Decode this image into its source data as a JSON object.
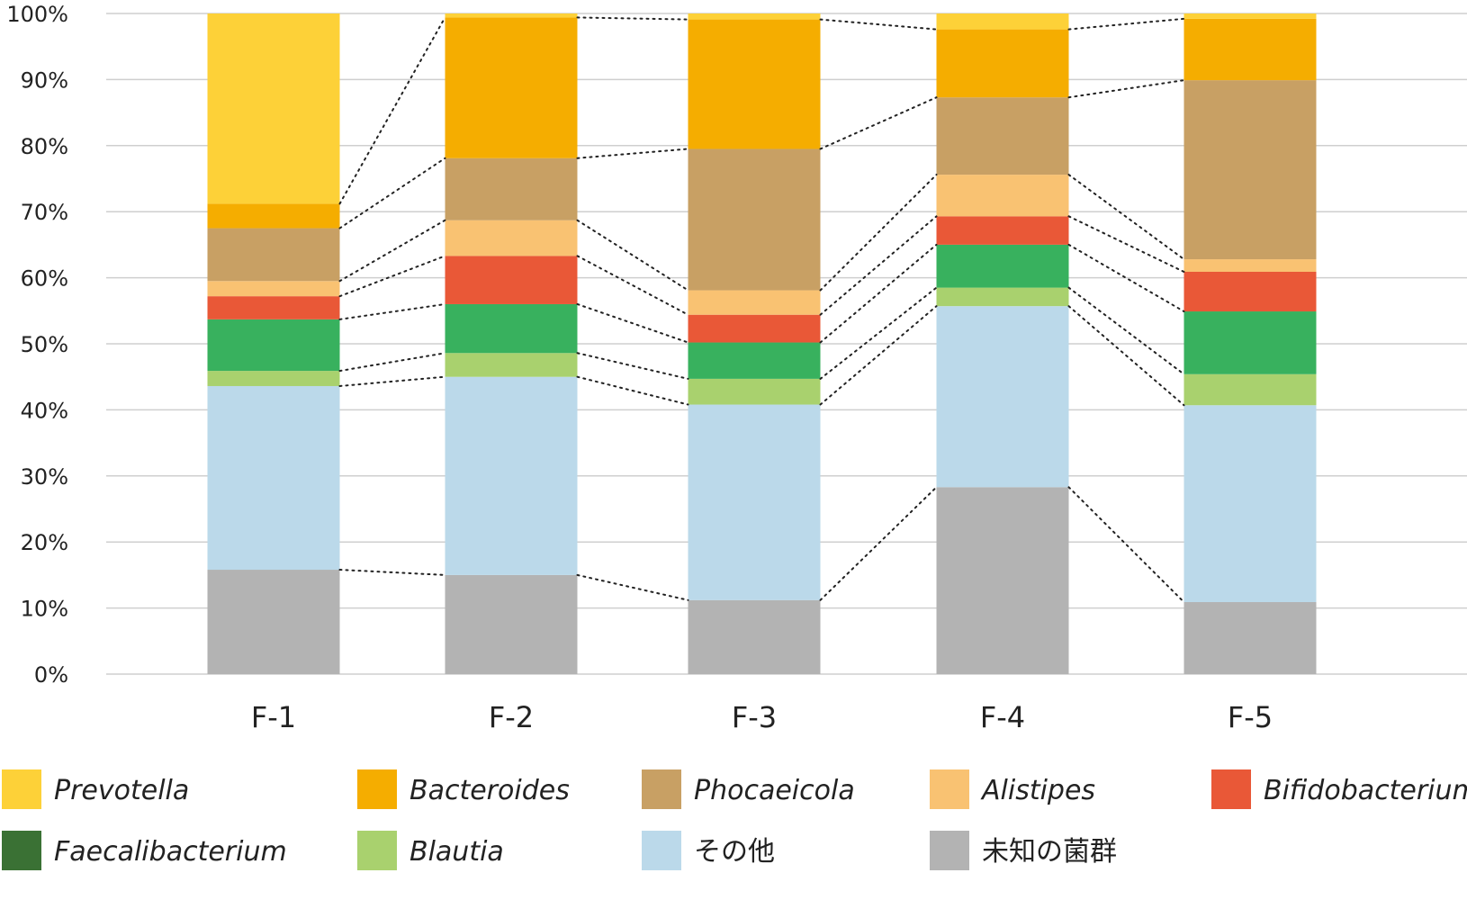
{
  "chart_data": {
    "type": "bar",
    "stacked": true,
    "normalized": true,
    "title": "",
    "xlabel": "",
    "ylabel": "",
    "ylim": [
      0,
      100
    ],
    "yticks": [
      "0%",
      "10%",
      "20%",
      "30%",
      "40%",
      "50%",
      "60%",
      "70%",
      "80%",
      "90%",
      "100%"
    ],
    "grid": true,
    "legend_position": "bottom",
    "connector_lines": "dotted",
    "categories": [
      "F-1",
      "F-2",
      "F-3",
      "F-4",
      "F-5"
    ],
    "series": [
      {
        "name": "未知の菌群",
        "color": "#b3b3b3",
        "values": [
          15.8,
          15.0,
          11.2,
          28.3,
          10.9
        ]
      },
      {
        "name": "その他",
        "color": "#bbd9ea",
        "values": [
          27.8,
          30.0,
          29.6,
          27.4,
          29.8
        ]
      },
      {
        "name": "Blautia",
        "color": "#a9d16e",
        "values": [
          2.3,
          3.6,
          3.9,
          2.8,
          4.7
        ]
      },
      {
        "name": "Faecalibacterium",
        "color": "#38b15e",
        "values": [
          7.8,
          7.4,
          5.5,
          6.5,
          9.5
        ]
      },
      {
        "name": "Bifidobacterium",
        "color": "#e95837",
        "values": [
          3.5,
          7.3,
          4.2,
          4.3,
          6.0
        ]
      },
      {
        "name": "Alistipes",
        "color": "#f9c272",
        "values": [
          2.3,
          5.4,
          3.7,
          6.3,
          1.9
        ]
      },
      {
        "name": "Phocaeicola",
        "color": "#c8a064",
        "values": [
          8.0,
          9.4,
          21.4,
          11.7,
          27.1
        ]
      },
      {
        "name": "Bacteroides",
        "color": "#f5ad00",
        "values": [
          3.7,
          21.3,
          19.6,
          10.3,
          9.3
        ]
      },
      {
        "name": "Prevotella",
        "color": "#fdd138",
        "values": [
          28.8,
          0.6,
          0.9,
          2.4,
          0.8
        ]
      }
    ]
  },
  "legend": {
    "items": [
      {
        "label": "Prevotella",
        "color": "#fdd138",
        "italic": true
      },
      {
        "label": "Bacteroides",
        "color": "#f5ad00",
        "italic": true
      },
      {
        "label": "Phocaeicola",
        "color": "#c8a064",
        "italic": true
      },
      {
        "label": "Alistipes",
        "color": "#f9c272",
        "italic": true
      },
      {
        "label": "Bifidobacterium",
        "color": "#e95837",
        "italic": true
      },
      {
        "label": "Faecalibacterium",
        "color": "#3a7134",
        "italic": true
      },
      {
        "label": "Blautia",
        "color": "#a9d16e",
        "italic": true
      },
      {
        "label": "その他",
        "color": "#bbd9ea",
        "italic": false
      },
      {
        "label": "未知の菌群",
        "color": "#b3b3b3",
        "italic": false
      }
    ]
  }
}
